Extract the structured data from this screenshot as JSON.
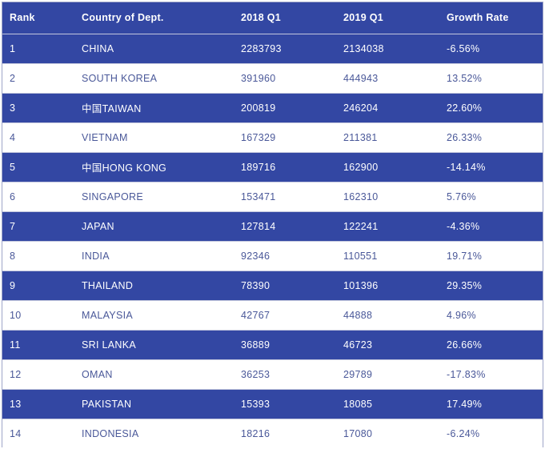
{
  "table": {
    "headers": {
      "rank": "Rank",
      "country": "Country of Dept.",
      "q2018": "2018 Q1",
      "q2019": "2019 Q1",
      "growth": "Growth Rate"
    },
    "rows": [
      {
        "rank": "1",
        "country": "CHINA",
        "q2018": "2283793",
        "q2019": "2134038",
        "growth": "-6.56%"
      },
      {
        "rank": "2",
        "country": "SOUTH KOREA",
        "q2018": "391960",
        "q2019": "444943",
        "growth": "13.52%"
      },
      {
        "rank": "3",
        "country": "中国TAIWAN",
        "q2018": "200819",
        "q2019": "246204",
        "growth": "22.60%"
      },
      {
        "rank": "4",
        "country": "VIETNAM",
        "q2018": "167329",
        "q2019": "211381",
        "growth": "26.33%"
      },
      {
        "rank": "5",
        "country": "中国HONG KONG",
        "q2018": "189716",
        "q2019": "162900",
        "growth": "-14.14%"
      },
      {
        "rank": "6",
        "country": "SINGAPORE",
        "q2018": "153471",
        "q2019": "162310",
        "growth": "5.76%"
      },
      {
        "rank": "7",
        "country": "JAPAN",
        "q2018": "127814",
        "q2019": "122241",
        "growth": "-4.36%"
      },
      {
        "rank": "8",
        "country": "INDIA",
        "q2018": "92346",
        "q2019": "110551",
        "growth": "19.71%"
      },
      {
        "rank": "9",
        "country": "THAILAND",
        "q2018": "78390",
        "q2019": "101396",
        "growth": "29.35%"
      },
      {
        "rank": "10",
        "country": "MALAYSIA",
        "q2018": "42767",
        "q2019": "44888",
        "growth": "4.96%"
      },
      {
        "rank": "11",
        "country": "SRI LANKA",
        "q2018": "36889",
        "q2019": "46723",
        "growth": "26.66%"
      },
      {
        "rank": "12",
        "country": "OMAN",
        "q2018": "36253",
        "q2019": "29789",
        "growth": "-17.83%"
      },
      {
        "rank": "13",
        "country": "PAKISTAN",
        "q2018": "15393",
        "q2019": "18085",
        "growth": "17.49%"
      },
      {
        "rank": "14",
        "country": "INDONESIA",
        "q2018": "18216",
        "q2019": "17080",
        "growth": "-6.24%"
      }
    ]
  },
  "colors": {
    "header_bg": "#3347a3",
    "dark_row_bg": "#3347a3",
    "light_row_bg": "#ffffff",
    "dark_row_text": "#ffffff",
    "light_row_text": "#4a5899"
  }
}
